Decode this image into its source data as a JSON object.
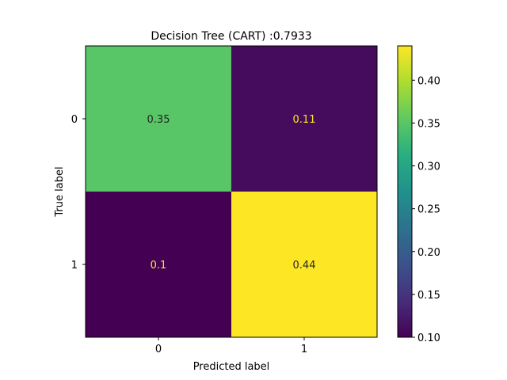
{
  "chart_data": {
    "type": "heatmap",
    "title": "Decision Tree (CART) :0.7933",
    "xlabel": "Predicted label",
    "ylabel": "True label",
    "x_categories": [
      "0",
      "1"
    ],
    "y_categories": [
      "0",
      "1"
    ],
    "values": [
      [
        0.35,
        0.11
      ],
      [
        0.1,
        0.44
      ]
    ],
    "cell_labels": [
      [
        "0.35",
        "0.11"
      ],
      [
        "0.1",
        "0.44"
      ]
    ],
    "colormap": "viridis",
    "colorbar": {
      "range": [
        0.1,
        0.44
      ],
      "ticks": [
        0.1,
        0.15,
        0.2,
        0.25,
        0.3,
        0.35,
        0.4
      ],
      "tick_labels": [
        "0.10",
        "0.15",
        "0.20",
        "0.25",
        "0.30",
        "0.35",
        "0.40"
      ]
    },
    "grid": false,
    "text_colors": {
      "dark_bg": "#fde725",
      "light_bg": "#262626"
    }
  }
}
